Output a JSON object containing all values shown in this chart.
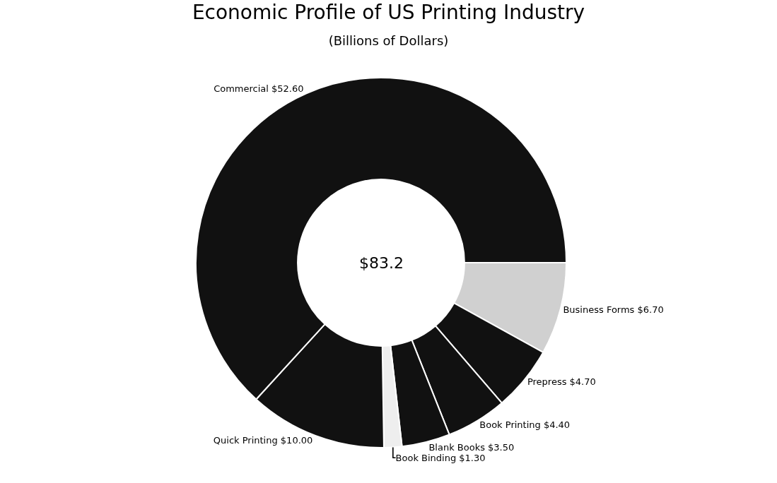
{
  "chart_data": {
    "type": "donut",
    "title": "Economic Profile of US Printing Industry",
    "subtitle": "(Billions of Dollars)",
    "categories": [
      "Business Forms",
      "Prepress",
      "Book Printing",
      "Blank Books",
      "Book Binding",
      "Quick Printing",
      "Commercial"
    ],
    "values": [
      6.7,
      4.7,
      4.4,
      3.5,
      1.3,
      10.0,
      52.6
    ],
    "value_labels": [
      "$6.70",
      "$4.70",
      "$4.40",
      "$3.50",
      "$1.30",
      "$10.00",
      "$52.60"
    ],
    "colors": [
      "#d0d0d0",
      "#111111",
      "#111111",
      "#111111",
      "#eeeeee",
      "#111111",
      "#111111"
    ],
    "annotations": [
      "$83.2"
    ],
    "legend": false
  }
}
